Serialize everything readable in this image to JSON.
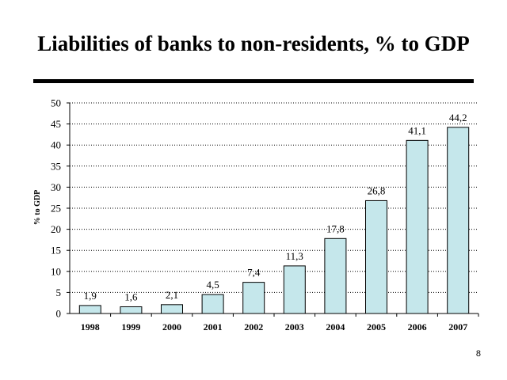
{
  "slide": {
    "title": "Liabilities of banks to non-residents, % to GDP",
    "page_number": "8"
  },
  "chart_data": {
    "type": "bar",
    "title": "",
    "xlabel": "",
    "ylabel": "% to GDP",
    "categories": [
      "1998",
      "1999",
      "2000",
      "2001",
      "2002",
      "2003",
      "2004",
      "2005",
      "2006",
      "2007"
    ],
    "values": [
      1.9,
      1.6,
      2.1,
      4.5,
      7.4,
      11.3,
      17.8,
      26.8,
      41.1,
      44.2
    ],
    "value_labels": [
      "1,9",
      "1,6",
      "2,1",
      "4,5",
      "7,4",
      "11,3",
      "17,8",
      "26,8",
      "41,1",
      "44,2"
    ],
    "ylim": [
      0,
      50
    ],
    "yticks": [
      0,
      5,
      10,
      15,
      20,
      25,
      30,
      35,
      40,
      45,
      50
    ],
    "grid": true,
    "legend": "none",
    "bar_color": "#c5e7eb",
    "bar_edge_color": "#000000"
  }
}
